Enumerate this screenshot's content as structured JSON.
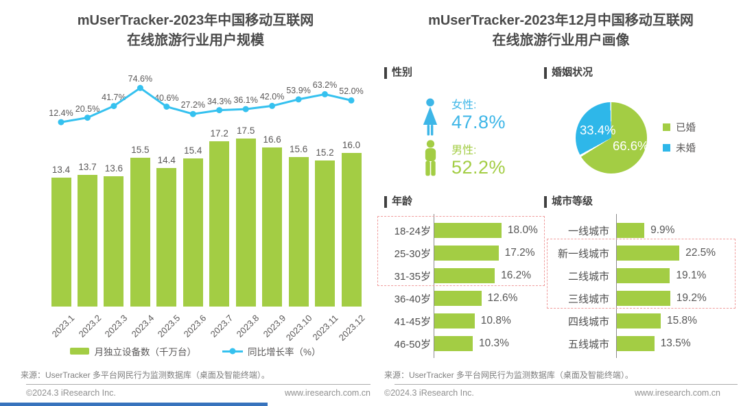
{
  "colors": {
    "green": "#a3cd44",
    "cyan": "#35c1ef",
    "pie_blue": "#2eb7e9",
    "female_blue": "#3db6e7",
    "highlight_dash": "#f09c9c",
    "brand_blue": "#3773bd"
  },
  "left_panel": {
    "title_line1": "mUserTracker-2023年中国移动互联网",
    "title_line2": "在线旅游行业用户规模",
    "source": "来源：UserTracker 多平台网民行为监测数据库（桌面及智能终端）。",
    "copyright": "©2024.3 iResearch Inc.",
    "website": "www.iresearch.com.cn"
  },
  "right_panel": {
    "title_line1": "mUserTracker-2023年12月中国移动互联网",
    "title_line2": "在线旅游行业用户画像",
    "sections": {
      "gender": "性别",
      "marital": "婚姻状况",
      "age": "年龄",
      "city": "城市等级"
    },
    "source": "来源：UserTracker 多平台网民行为监测数据库（桌面及智能终端）。",
    "copyright": "©2024.3 iResearch Inc.",
    "website": "www.iresearch.com.cn"
  },
  "chart_data": [
    {
      "id": "user_scale",
      "type": "bar",
      "subtype": "bar+line combo",
      "title": "mUserTracker-2023年中国移动互联网在线旅游行业用户规模",
      "categories": [
        "2023.1",
        "2023.2",
        "2023.3",
        "2023.4",
        "2023.5",
        "2023.6",
        "2023.7",
        "2023.8",
        "2023.9",
        "2023.10",
        "2023.11",
        "2023.12"
      ],
      "series": [
        {
          "name": "月独立设备数（千万台）",
          "type": "bar",
          "color": "#a3cd44",
          "values": [
            13.4,
            13.7,
            13.6,
            15.5,
            14.4,
            15.4,
            17.2,
            17.5,
            16.6,
            15.6,
            15.2,
            16.0
          ]
        },
        {
          "name": "同比增长率（%）",
          "type": "line",
          "color": "#35c1ef",
          "values": [
            12.4,
            20.5,
            41.7,
            74.6,
            40.6,
            27.2,
            34.3,
            36.1,
            42.0,
            53.9,
            63.2,
            52.0
          ]
        }
      ],
      "legend_position": "bottom",
      "grid": false
    },
    {
      "id": "gender",
      "type": "pictogram",
      "title": "性别",
      "items": [
        {
          "icon": "female-icon",
          "label": "女性:",
          "value": "47.8%",
          "color": "#3db6e7"
        },
        {
          "icon": "male-icon",
          "label": "男性:",
          "value": "52.2%",
          "color": "#a3cd44"
        }
      ]
    },
    {
      "id": "marital",
      "type": "pie",
      "title": "婚姻状况",
      "slices": [
        {
          "label": "已婚",
          "value": 66.6,
          "pct_label": "66.6%",
          "color": "#a3cd44"
        },
        {
          "label": "未婚",
          "value": 33.4,
          "pct_label": "33.4%",
          "color": "#2eb7e9"
        }
      ],
      "start_angle": "top",
      "direction": "clockwise",
      "legend_position": "right"
    },
    {
      "id": "age",
      "type": "bar",
      "orientation": "horizontal",
      "title": "年龄",
      "color": "#a3cd44",
      "categories": [
        "18-24岁",
        "25-30岁",
        "31-35岁",
        "36-40岁",
        "41-45岁",
        "46-50岁"
      ],
      "values": [
        18.0,
        17.2,
        16.2,
        12.6,
        10.8,
        10.3
      ],
      "value_labels": [
        "18.0%",
        "17.2%",
        "16.2%",
        "12.6%",
        "10.8%",
        "10.3%"
      ],
      "highlight_rows": [
        0,
        1,
        2
      ]
    },
    {
      "id": "city",
      "type": "bar",
      "orientation": "horizontal",
      "title": "城市等级",
      "color": "#a3cd44",
      "categories": [
        "一线城市",
        "新一线城市",
        "二线城市",
        "三线城市",
        "四线城市",
        "五线城市"
      ],
      "values": [
        9.9,
        22.5,
        19.1,
        19.2,
        15.8,
        13.5
      ],
      "value_labels": [
        "9.9%",
        "22.5%",
        "19.1%",
        "19.2%",
        "15.8%",
        "13.5%"
      ],
      "highlight_rows": [
        1,
        2,
        3
      ]
    }
  ]
}
